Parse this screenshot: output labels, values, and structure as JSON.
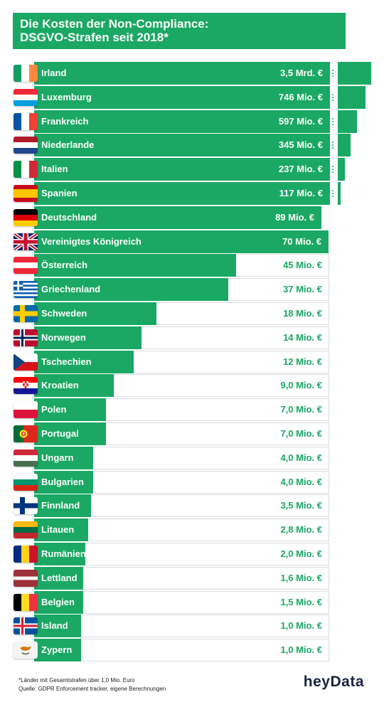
{
  "title": {
    "line1": "Die Kosten der Non-Compliance:",
    "line2": "DSGVO-Strafen seit 2018*"
  },
  "footnote": {
    "line1": "*Länder mit Gesamtstrafen über 1,0 Mio. Euro",
    "line2": "Quelle: GDPR Enforcement tracker, eigene Berechnungen"
  },
  "logo": "heyData",
  "colors": {
    "accent": "#1aa864",
    "white": "#ffffff",
    "track_border": "#d8dde2",
    "dark_text": "#1a2340"
  },
  "chart_data": {
    "type": "bar",
    "orientation": "horizontal",
    "unit": "Mio. €",
    "axis_broken_above": 89,
    "categories": [
      "Irland",
      "Luxemburg",
      "Frankreich",
      "Niederlande",
      "Italien",
      "Spanien",
      "Deutschland",
      "Vereinigtes Königreich",
      "Österreich",
      "Griechenland",
      "Schweden",
      "Norwegen",
      "Tschechien",
      "Kroatien",
      "Polen",
      "Portugal",
      "Ungarn",
      "Bulgarien",
      "Finnland",
      "Litauen",
      "Rumänien",
      "Lettland",
      "Belgien",
      "Island",
      "Zypern"
    ],
    "values": [
      3500,
      746,
      597,
      345,
      237,
      117,
      89,
      70,
      45,
      37,
      18,
      14,
      12,
      9.0,
      7.0,
      7.0,
      4.0,
      4.0,
      3.5,
      2.8,
      2.0,
      1.6,
      1.5,
      1.0,
      1.0
    ],
    "labels": [
      "3,5 Mrd. €",
      "746 Mio. €",
      "597 Mio. €",
      "345 Mio. €",
      "237 Mio. €",
      "117 Mio. €",
      "89 Mio. €",
      "70 Mio. €",
      "45 Mio. €",
      "37 Mio. €",
      "18 Mio. €",
      "14 Mio. €",
      "12 Mio. €",
      "9,0 Mio. €",
      "7,0 Mio. €",
      "7,0 Mio. €",
      "4,0 Mio. €",
      "4,0 Mio. €",
      "3,5 Mio. €",
      "2,8 Mio. €",
      "2,0 Mio. €",
      "1,6 Mio. €",
      "1,5 Mio. €",
      "1,0 Mio.  €",
      "1,0 Mio.  €"
    ],
    "flags": [
      "flag-ireland-icon",
      "flag-luxembourg-icon",
      "flag-france-icon",
      "flag-netherlands-icon",
      "flag-italy-icon",
      "flag-spain-icon",
      "flag-germany-icon",
      "flag-united-kingdom-icon",
      "flag-austria-icon",
      "flag-greece-icon",
      "flag-sweden-icon",
      "flag-norway-icon",
      "flag-czechia-icon",
      "flag-croatia-icon",
      "flag-poland-icon",
      "flag-portugal-icon",
      "flag-hungary-icon",
      "flag-bulgaria-icon",
      "flag-finland-icon",
      "flag-lithuania-icon",
      "flag-romania-icon",
      "flag-latvia-icon",
      "flag-belgium-icon",
      "flag-iceland-icon",
      "flag-cyprus-icon"
    ]
  }
}
